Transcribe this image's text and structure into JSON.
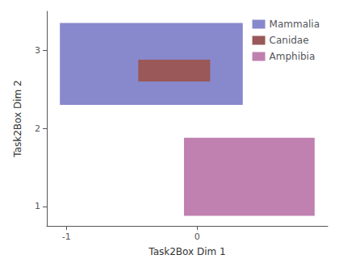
{
  "chart_data": {
    "type": "rectangle",
    "xlabel": "Task2Box Dim 1",
    "ylabel": "Task2Box Dim 2",
    "series": [
      {
        "name": "Mammalia",
        "color": "#8888cc",
        "x": -1.05,
        "y": 2.3,
        "width": 1.4,
        "height": 1.05
      },
      {
        "name": "Canidae",
        "color": "#9a5858",
        "x": -0.45,
        "y": 2.6,
        "width": 0.55,
        "height": 0.28
      },
      {
        "name": "Amphibia",
        "color": "#c080b0",
        "x": -0.1,
        "y": 0.88,
        "width": 1.0,
        "height": 1.0
      }
    ],
    "xlim": [
      -1.15,
      1.0
    ],
    "ylim": [
      0.75,
      3.5
    ],
    "xticks": [
      -1,
      0
    ],
    "yticks": [
      1,
      2,
      3
    ],
    "grid": false,
    "legend": "upper right"
  }
}
